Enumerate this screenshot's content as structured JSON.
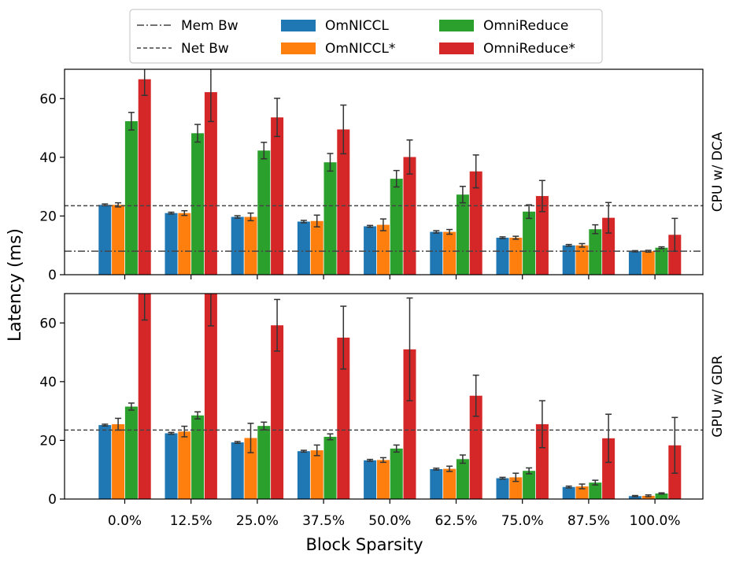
{
  "chart_data": {
    "type": "bar",
    "ylabel": "Latency (ms)",
    "xlabel": "Block Sparsity",
    "categories": [
      "0.0%",
      "12.5%",
      "25.0%",
      "37.5%",
      "50.0%",
      "62.5%",
      "75.0%",
      "87.5%",
      "100.0%"
    ],
    "ylim": [
      0,
      70
    ],
    "yticks": [
      0,
      20,
      40,
      60
    ],
    "legend": {
      "placement": "top-center",
      "lines": [
        {
          "label": "Mem Bw",
          "style": "dashdot"
        },
        {
          "label": "Net Bw",
          "style": "dashed"
        }
      ],
      "bars": [
        "OmNICCL",
        "OmNICCL*",
        "OmniReduce",
        "OmniReduce*"
      ]
    },
    "colors": {
      "OmNICCL": "#1f77b4",
      "OmNICCL*": "#ff7f0e",
      "OmniReduce": "#2ca02c",
      "OmniReduce*": "#d62728",
      "lines": "#444444",
      "errorbar": "#333333"
    },
    "panels": [
      {
        "label": "CPU w/ DCA",
        "mem_bw": 8.0,
        "net_bw": 23.5,
        "series": [
          {
            "name": "OmNICCL",
            "values": [
              23.8,
              21.0,
              19.7,
              18.1,
              16.5,
              14.6,
              12.6,
              10.0,
              8.0
            ],
            "errors": [
              0.3,
              0.3,
              0.4,
              0.4,
              0.3,
              0.4,
              0.3,
              0.3,
              0.2
            ]
          },
          {
            "name": "OmNICCL*",
            "values": [
              23.8,
              21.0,
              19.7,
              18.3,
              17.0,
              14.6,
              12.6,
              10.0,
              8.0
            ],
            "errors": [
              0.7,
              0.8,
              1.3,
              2.0,
              2.0,
              0.8,
              0.5,
              0.6,
              0.3
            ]
          },
          {
            "name": "OmniReduce",
            "values": [
              52.3,
              48.2,
              42.3,
              38.3,
              32.7,
              27.3,
              21.5,
              15.5,
              9.2
            ],
            "errors": [
              3.0,
              3.0,
              2.8,
              3.0,
              2.8,
              2.8,
              2.3,
              1.5,
              0.3
            ]
          },
          {
            "name": "OmniReduce*",
            "values": [
              66.6,
              62.2,
              53.6,
              49.5,
              40.1,
              35.2,
              26.8,
              19.4,
              13.6
            ],
            "errors": [
              5.5,
              10.0,
              6.5,
              8.3,
              5.8,
              5.6,
              5.3,
              5.2,
              5.6
            ]
          }
        ]
      },
      {
        "label": "GPU w/ GDR",
        "net_bw": 23.5,
        "series": [
          {
            "name": "OmNICCL",
            "values": [
              25.2,
              22.4,
              19.3,
              16.3,
              13.2,
              10.2,
              7.1,
              4.1,
              1.0
            ],
            "errors": [
              0.3,
              0.3,
              0.3,
              0.3,
              0.3,
              0.3,
              0.3,
              0.3,
              0.2
            ]
          },
          {
            "name": "OmNICCL*",
            "values": [
              25.5,
              23.0,
              20.8,
              16.6,
              13.3,
              10.3,
              7.4,
              4.3,
              1.1
            ],
            "errors": [
              2.0,
              1.8,
              5.0,
              1.8,
              0.8,
              0.9,
              1.4,
              0.8,
              0.3
            ]
          },
          {
            "name": "OmniReduce",
            "values": [
              31.5,
              28.5,
              24.9,
              21.2,
              17.2,
              13.6,
              9.6,
              5.6,
              1.9
            ],
            "errors": [
              1.2,
              1.2,
              1.3,
              1.0,
              1.2,
              1.4,
              1.0,
              0.8,
              0.2
            ]
          },
          {
            "name": "OmniReduce*",
            "values": [
              70,
              70,
              59.2,
              55.0,
              51.0,
              35.2,
              25.5,
              20.7,
              18.3
            ],
            "errors": [
              9.0,
              11.0,
              8.8,
              10.7,
              17.5,
              7.0,
              8.0,
              8.2,
              9.5
            ]
          }
        ]
      }
    ]
  }
}
